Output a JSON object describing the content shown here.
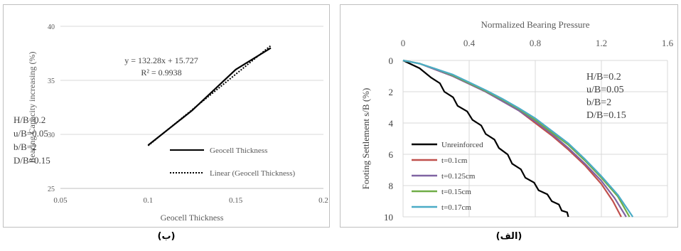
{
  "captions": {
    "left": "(ب)",
    "right": "(الف)"
  },
  "chart_data": [
    {
      "type": "line",
      "xlabel": "Geocell Thickness",
      "ylabel": "Bearing Capacity increasing (%)",
      "xlim": [
        0.05,
        0.2
      ],
      "ylim": [
        25,
        40
      ],
      "xticks": [
        0.05,
        0.1,
        0.15,
        0.2
      ],
      "xtick_labels": [
        "0.05",
        "0.1",
        "0.15",
        "0.2"
      ],
      "yticks": [
        25,
        30,
        35,
        40
      ],
      "ytick_labels": [
        "25",
        "30",
        "35",
        "40"
      ],
      "grid": "horizontal",
      "series": [
        {
          "name": "Geocell Thickness",
          "style": "solid",
          "color": "#000000",
          "x": [
            0.1,
            0.125,
            0.15,
            0.17
          ],
          "y": [
            29.0,
            32.2,
            36.0,
            38.0
          ]
        },
        {
          "name": "Linear (Geocell Thickness)",
          "style": "dotted",
          "color": "#000000",
          "x": [
            0.1,
            0.17
          ],
          "y": [
            28.955,
            38.215
          ]
        }
      ],
      "equation": "y = 132.28x + 15.727",
      "r_squared": "R² = 0.9938",
      "params": [
        "H/B=0.2",
        "u/B=0.05",
        "b/B=2",
        "D/B=0.15"
      ],
      "legend_position": "lower-right"
    },
    {
      "type": "line",
      "xlabel": "Normalized Bearing Pressure",
      "ylabel": "Footing Settlement s/B (%)",
      "x_axis_position": "top",
      "y_inverted": true,
      "xlim": [
        0,
        1.6
      ],
      "ylim": [
        0,
        10
      ],
      "xticks": [
        0,
        0.4,
        0.8,
        1.2,
        1.6
      ],
      "xtick_labels": [
        "0",
        "0.4",
        "0.8",
        "1.2",
        "1.6"
      ],
      "yticks": [
        0,
        2,
        4,
        6,
        8,
        10
      ],
      "ytick_labels": [
        "0",
        "2",
        "4",
        "6",
        "8",
        "10"
      ],
      "grid": "both",
      "series": [
        {
          "name": "Unreinforced",
          "color": "#000000",
          "x": [
            0,
            0.1,
            0.17,
            0.25,
            0.33,
            0.42,
            0.5,
            0.58,
            0.66,
            0.74,
            0.82,
            0.9,
            0.96,
            1.0
          ],
          "y": [
            0,
            0.5,
            1.1,
            2.0,
            2.9,
            3.8,
            4.7,
            5.6,
            6.6,
            7.5,
            8.3,
            9.0,
            9.6,
            10.0
          ]
        },
        {
          "name": "t=0.1cm",
          "color": "#c0504d",
          "x": [
            0,
            0.1,
            0.2,
            0.3,
            0.4,
            0.5,
            0.6,
            0.7,
            0.8,
            0.9,
            1.0,
            1.1,
            1.2,
            1.27,
            1.32
          ],
          "y": [
            0,
            0.2,
            0.6,
            1.0,
            1.5,
            2.0,
            2.6,
            3.2,
            4.0,
            4.8,
            5.7,
            6.7,
            7.9,
            9.0,
            10.0
          ]
        },
        {
          "name": "t=0.125cm",
          "color": "#8064a2",
          "x": [
            0,
            0.1,
            0.2,
            0.3,
            0.4,
            0.5,
            0.6,
            0.7,
            0.8,
            0.9,
            1.0,
            1.1,
            1.2,
            1.28,
            1.35
          ],
          "y": [
            0,
            0.2,
            0.6,
            1.0,
            1.5,
            2.0,
            2.6,
            3.2,
            3.9,
            4.7,
            5.6,
            6.6,
            7.7,
            8.8,
            10.0
          ]
        },
        {
          "name": "t=0.15cm",
          "color": "#70ad47",
          "x": [
            0,
            0.1,
            0.2,
            0.3,
            0.4,
            0.5,
            0.6,
            0.7,
            0.8,
            0.9,
            1.0,
            1.1,
            1.2,
            1.3,
            1.37
          ],
          "y": [
            0,
            0.2,
            0.55,
            0.95,
            1.45,
            1.95,
            2.5,
            3.1,
            3.8,
            4.6,
            5.4,
            6.4,
            7.5,
            8.7,
            10.0
          ]
        },
        {
          "name": "t=0.17cm",
          "color": "#4bacc6",
          "x": [
            0,
            0.1,
            0.2,
            0.3,
            0.4,
            0.5,
            0.6,
            0.7,
            0.8,
            0.9,
            1.0,
            1.1,
            1.2,
            1.3,
            1.39
          ],
          "y": [
            0,
            0.2,
            0.55,
            0.9,
            1.4,
            1.9,
            2.45,
            3.05,
            3.7,
            4.5,
            5.3,
            6.3,
            7.4,
            8.6,
            10.0
          ]
        }
      ],
      "params": [
        "H/B=0.2",
        "u/B=0.05",
        "b/B=2",
        "D/B=0.15"
      ],
      "legend_position": "lower-left"
    }
  ]
}
